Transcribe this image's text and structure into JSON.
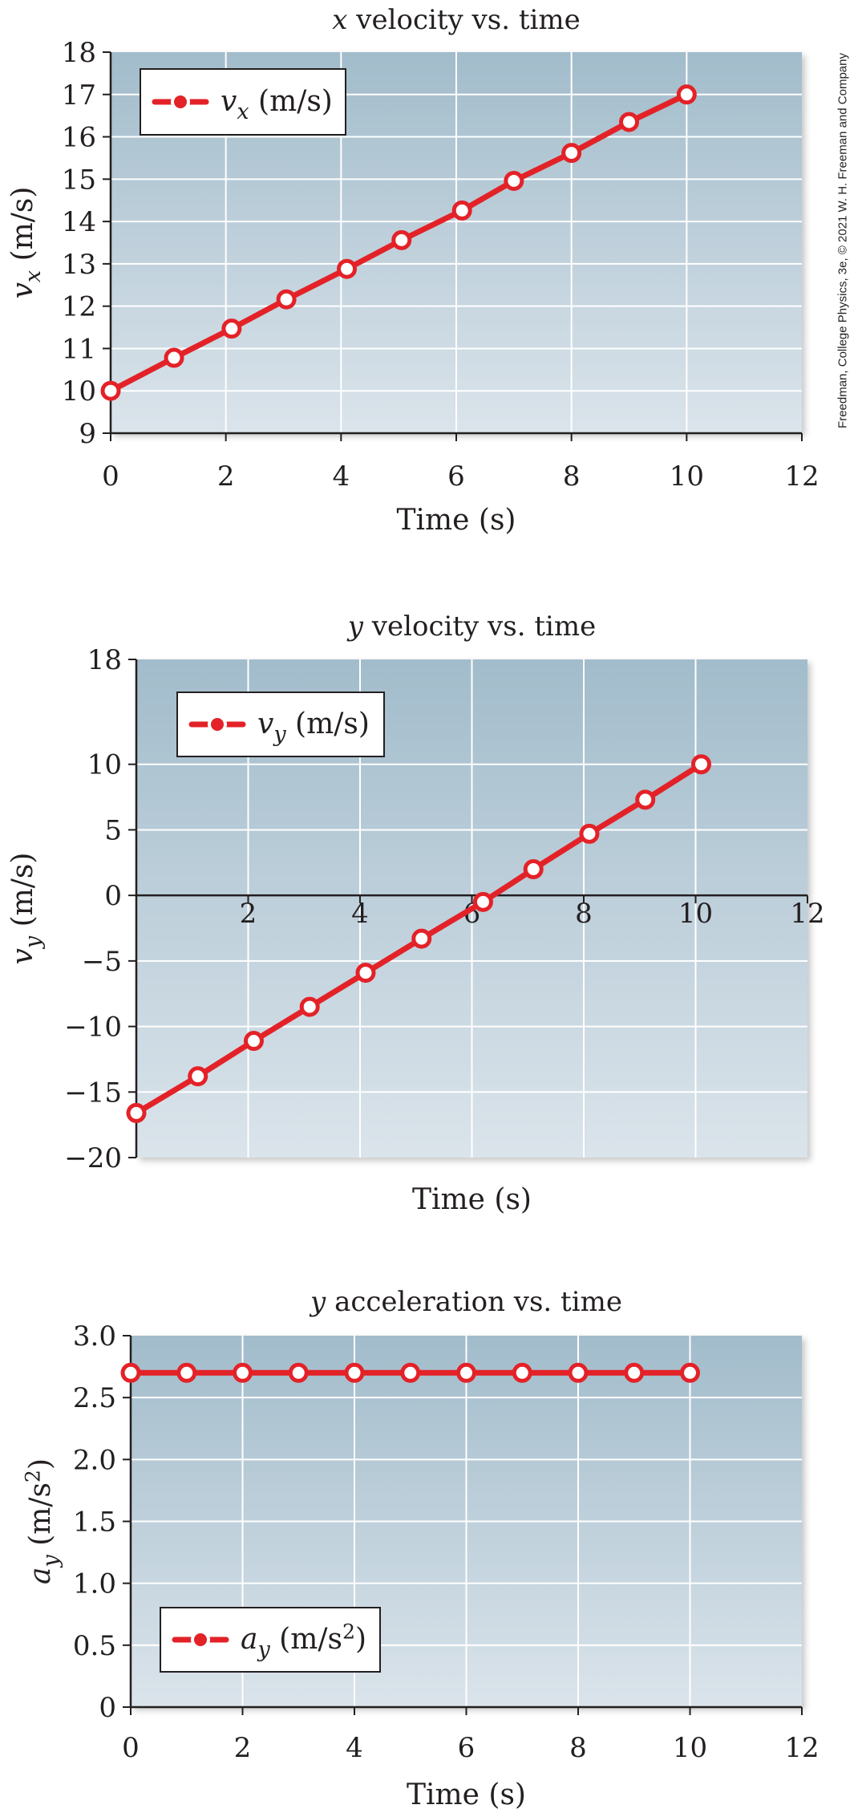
{
  "credit": "Freedman, College Physics, 3e, © 2021 W. H. Freeman and Company",
  "colors": {
    "line": "#e32228",
    "plot_top": "#a2bccb",
    "plot_bottom": "#dbe4eb",
    "grid": "#ffffff",
    "axis": "#231f20",
    "legend_box": "#ffffff"
  },
  "chart_data": [
    {
      "type": "line",
      "title": "x velocity vs. time",
      "xlabel": "Time (s)",
      "ylabel": "vx (m/s)",
      "xlim": [
        0,
        12
      ],
      "ylim": [
        9,
        18
      ],
      "xticks": [
        "0",
        "2",
        "4",
        "6",
        "8",
        "10",
        "12"
      ],
      "yticks": [
        "9",
        "10",
        "11",
        "12",
        "13",
        "14",
        "15",
        "16",
        "17",
        "18"
      ],
      "grid": true,
      "legend": "top-left",
      "series": [
        {
          "name": "vx (m/s)",
          "x": [
            0,
            1.1,
            2.1,
            3.05,
            4.1,
            5.05,
            6.1,
            7.0,
            8.0,
            9.0,
            10.0
          ],
          "y": [
            10.0,
            10.78,
            11.47,
            12.16,
            12.88,
            13.56,
            14.26,
            14.96,
            15.62,
            16.35,
            17.0
          ]
        }
      ]
    },
    {
      "type": "line",
      "title": "y velocity vs. time",
      "xlabel": "Time (s)",
      "ylabel": "vy (m/s)",
      "xlim": [
        0,
        12
      ],
      "ylim": [
        -20,
        18
      ],
      "xticks": [
        "2",
        "4",
        "6",
        "8",
        "10",
        "12"
      ],
      "yticks": [
        "18",
        "10",
        "5",
        "0",
        "−5",
        "−10",
        "−15",
        "−20"
      ],
      "grid": true,
      "legend": "top-left",
      "series": [
        {
          "name": "vy (m/s)",
          "x": [
            0.0,
            1.1,
            2.1,
            3.1,
            4.1,
            5.1,
            6.2,
            7.1,
            8.1,
            9.1,
            10.1
          ],
          "y": [
            -16.6,
            -13.8,
            -11.1,
            -8.5,
            -5.9,
            -3.3,
            -0.5,
            2.0,
            4.7,
            7.3,
            10.0
          ]
        }
      ]
    },
    {
      "type": "line",
      "title": "y acceleration vs. time",
      "xlabel": "Time (s)",
      "ylabel": "ay (m/s2)",
      "xlim": [
        0,
        12
      ],
      "ylim": [
        0,
        3.0
      ],
      "xticks": [
        "0",
        "2",
        "4",
        "6",
        "8",
        "10",
        "12"
      ],
      "yticks": [
        "0",
        "0.5",
        "1.0",
        "1.5",
        "2.0",
        "2.5",
        "3.0"
      ],
      "grid": true,
      "legend": "bottom-left",
      "series": [
        {
          "name": "ay (m/s2)",
          "x": [
            0,
            1,
            2,
            3,
            4,
            5,
            6,
            7,
            8,
            9,
            10
          ],
          "y": [
            2.7,
            2.7,
            2.7,
            2.7,
            2.7,
            2.7,
            2.7,
            2.7,
            2.7,
            2.7,
            2.7
          ]
        }
      ]
    }
  ]
}
